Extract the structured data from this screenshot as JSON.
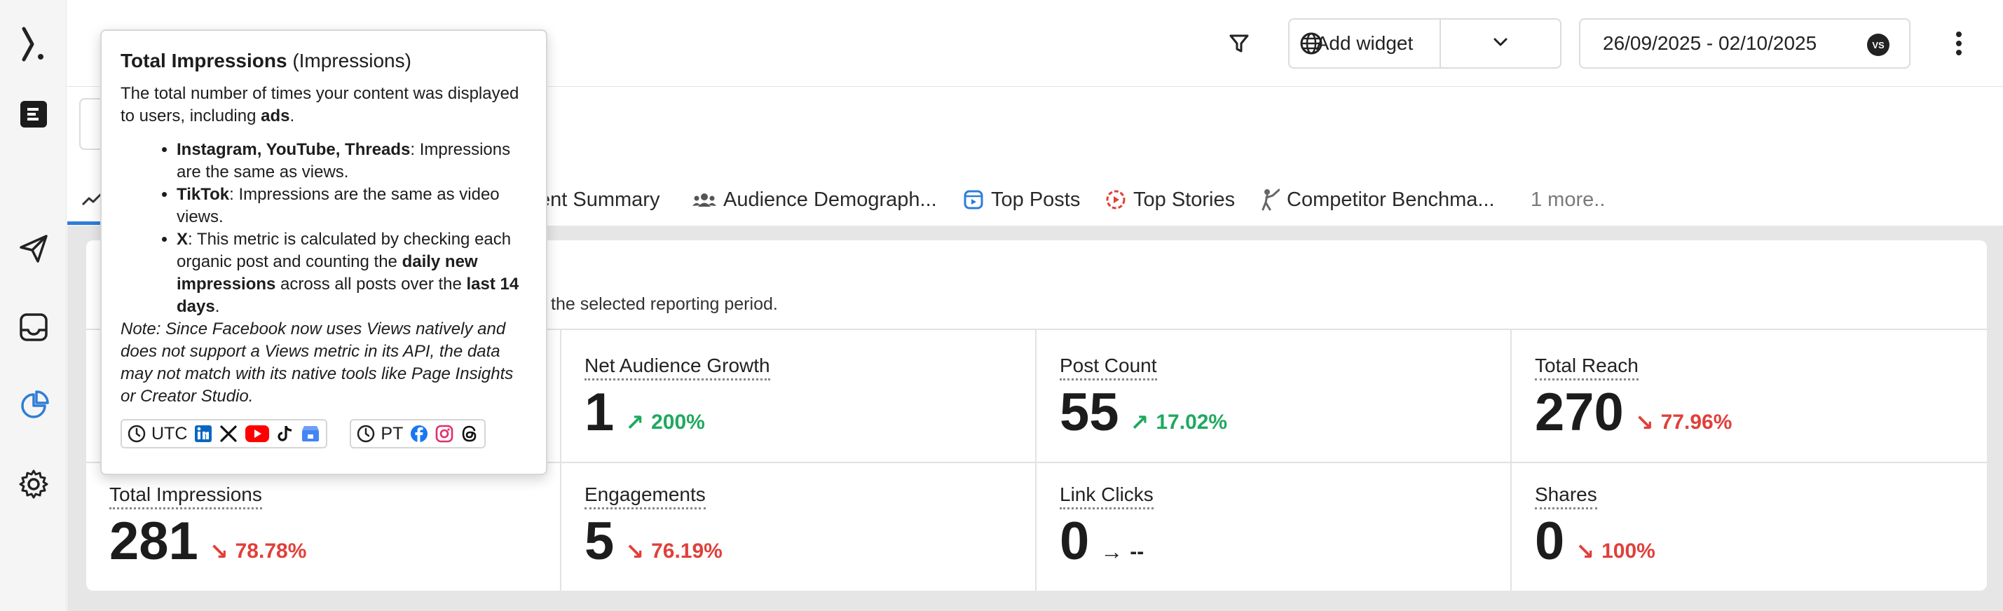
{
  "topbar": {
    "filter_icon": "filter-icon",
    "globe_icon": "globe-icon",
    "add_widget_label": "Add widget",
    "date_range": "26/09/2025 - 02/10/2025",
    "vs_badge": "VS",
    "more_icon": "kebab-icon"
  },
  "sidebar": {
    "items": [
      {
        "icon": "logo-icon"
      },
      {
        "icon": "workspace-icon"
      },
      {
        "icon": "send-icon"
      },
      {
        "icon": "inbox-icon"
      },
      {
        "icon": "analytics-icon",
        "active": true
      },
      {
        "icon": "gear-icon"
      }
    ]
  },
  "tabs": [
    {
      "label": "ent Summary"
    },
    {
      "label": "Audience Demograph..."
    },
    {
      "label": "Top Posts"
    },
    {
      "label": "Top Stories"
    },
    {
      "label": "Competitor Benchma..."
    },
    {
      "label": "1 more.."
    }
  ],
  "card": {
    "description": "the selected reporting period."
  },
  "metrics": [
    {
      "label": "Net Audience Growth",
      "value": "1",
      "change": "200%",
      "direction": "up"
    },
    {
      "label": "Post Count",
      "value": "55",
      "change": "17.02%",
      "direction": "up"
    },
    {
      "label": "Total Reach",
      "value": "270",
      "change": "77.96%",
      "direction": "down"
    },
    {
      "label": "Total Impressions",
      "value": "281",
      "change": "78.78%",
      "direction": "down"
    },
    {
      "label": "Engagements",
      "value": "5",
      "change": "76.19%",
      "direction": "down"
    },
    {
      "label": "Link Clicks",
      "value": "0",
      "change": "--",
      "direction": "flat"
    },
    {
      "label": "Shares",
      "value": "0",
      "change": "100%",
      "direction": "down"
    }
  ],
  "tooltip": {
    "title_bold": "Total Impressions",
    "title_rest": " (Impressions)",
    "intro_1": "The total number of times your content was displayed to users, including ",
    "intro_bold": "ads",
    "intro_2": ".",
    "bullets": [
      {
        "bold": "Instagram, YouTube, Threads",
        "text": ": Impressions are the same as views."
      },
      {
        "bold": "TikTok",
        "text": ": Impressions are the same as video views."
      },
      {
        "bold": "X",
        "text": ": This metric is calculated by checking each organic post and counting the ",
        "bold2": "daily new impressions",
        "text2": " across all posts over the ",
        "bold3": "last 14 days",
        "text3": "."
      }
    ],
    "note": "Note: Since Facebook now uses Views natively and does not support a Views metric in its API, the data may not match with its native tools like Page Insights or Creator Studio.",
    "tz_utc": "UTC",
    "tz_pt": "PT"
  },
  "colors": {
    "up": "#1fa960",
    "down": "#e0403b",
    "accent": "#2e7dd7"
  }
}
